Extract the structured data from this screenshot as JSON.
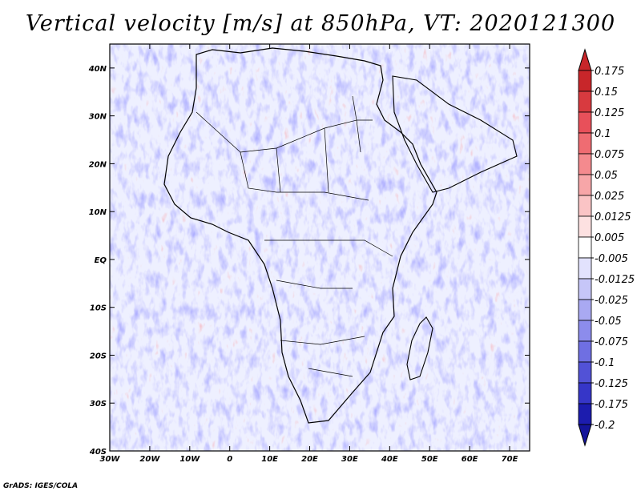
{
  "title": "Vertical velocity [m/s] at 850hPa, VT: 2020121300",
  "credit": "GrADS: IGES/COLA",
  "axes": {
    "lat_labels": [
      "40N",
      "30N",
      "20N",
      "10N",
      "EQ",
      "10S",
      "20S",
      "30S",
      "40S"
    ],
    "lon_labels": [
      "30W",
      "20W",
      "10W",
      "0",
      "10E",
      "20E",
      "30E",
      "40E",
      "50E",
      "60E",
      "70E"
    ],
    "lat_range": [
      -40,
      45
    ],
    "lon_range": [
      -30,
      75
    ]
  },
  "colorbar": {
    "levels": [
      "0.175",
      "0.15",
      "0.125",
      "0.1",
      "0.075",
      "0.05",
      "0.025",
      "0.0125",
      "0.005",
      "-0.005",
      "-0.0125",
      "-0.025",
      "-0.05",
      "-0.075",
      "-0.1",
      "-0.125",
      "-0.175",
      "-0.2"
    ],
    "colors": [
      "#c8262a",
      "#d83a3f",
      "#e8505a",
      "#ef6c72",
      "#f48a8e",
      "#f7a6a8",
      "#fac4c5",
      "#fde1e1",
      "#ffffff",
      "#e2e2fd",
      "#c6c6f8",
      "#a9a9f2",
      "#8c8cec",
      "#6f6fe2",
      "#5252d6",
      "#3636c8",
      "#1c1cae",
      "#14149a"
    ]
  },
  "chart_data": {
    "type": "heatmap",
    "title": "Vertical velocity [m/s] at 850hPa, VT: 2020121300",
    "variable": "Vertical velocity",
    "units": "m/s",
    "level": "850hPa",
    "valid_time": "2020121300",
    "xlabel": "",
    "ylabel": "",
    "x_range": [
      -30,
      75
    ],
    "y_range": [
      -40,
      45
    ]
  }
}
